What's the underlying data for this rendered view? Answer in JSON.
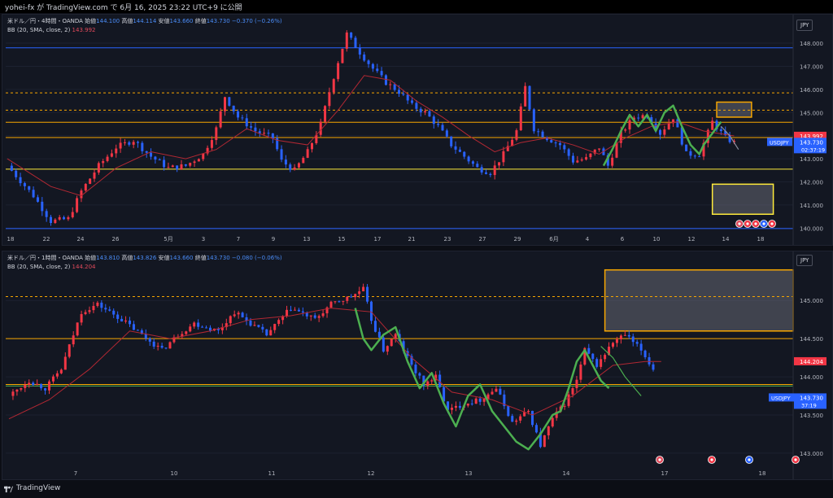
{
  "header": {
    "text": "yohei-fx が TradingView.com で 6月 16, 2025 23:22 UTC+9 に公開"
  },
  "footer": {
    "brand": "TradingView"
  },
  "colors": {
    "bull": "#f23645",
    "bear": "#2962ff",
    "bb": "#b22833",
    "wave": "#4caf50",
    "orange": "#f7a600",
    "support": "#ffeb3b",
    "blueline": "#2962ff"
  },
  "chart1": {
    "title": {
      "symbol": "米ドル／円・4時間・OANDA",
      "open_label": "始値",
      "open": "144.100",
      "high_label": "高値",
      "high": "144.114",
      "low_label": "安値",
      "low": "143.660",
      "close_label": "終値",
      "close": "143.730",
      "change": "−0.370 (−0.26%)"
    },
    "bb_label": "BB (20, SMA, close, 2)",
    "bb_value": "143.992",
    "currency": "JPY",
    "price_ticks": [
      "148.000",
      "147.000",
      "146.000",
      "145.000",
      "144.000",
      "143.000",
      "142.000",
      "141.000",
      "140.000"
    ],
    "date_ticks": [
      "18",
      "22",
      "24",
      "26",
      "5月",
      "3",
      "7",
      "9",
      "13",
      "15",
      "17",
      "21",
      "23",
      "27",
      "29",
      "6月",
      "4",
      "6",
      "10",
      "12",
      "14",
      "18"
    ],
    "tag_bb": "143.992",
    "tag_sym": "USDJPY",
    "tag_price": "143.730",
    "tag_time": "02:37:19"
  },
  "chart2": {
    "title": {
      "symbol": "米ドル／円・1時間・OANDA",
      "open_label": "始値",
      "open": "143.810",
      "high_label": "高値",
      "high": "143.826",
      "low_label": "安値",
      "low": "143.660",
      "close_label": "終値",
      "close": "143.730",
      "change": "−0.080 (−0.06%)"
    },
    "bb_label": "BB (20, SMA, close, 2)",
    "bb_value": "144.204",
    "currency": "JPY",
    "price_ticks": [
      "145.000",
      "144.500",
      "144.000",
      "143.500",
      "143.000"
    ],
    "date_ticks": [
      "7",
      "10",
      "11",
      "12",
      "13",
      "14",
      "17",
      "18"
    ],
    "tag_bb": "144.204",
    "tag_sym": "USDJPY",
    "tag_price": "143.730",
    "tag_time": "37:19"
  },
  "chart_data": [
    {
      "type": "candlestick",
      "title": "米ドル／円・4時間・OANDA",
      "ylim": [
        139.8,
        148.6
      ],
      "x_range": [
        "Apr 18",
        "Jun 18"
      ],
      "close_path": [
        [
          0,
          142.7
        ],
        [
          6,
          141.4
        ],
        [
          10,
          140.3
        ],
        [
          14,
          140.4
        ],
        [
          17,
          141.6
        ],
        [
          21,
          142.7
        ],
        [
          25,
          143.5
        ],
        [
          29,
          143.8
        ],
        [
          33,
          143.1
        ],
        [
          37,
          142.6
        ],
        [
          41,
          142.7
        ],
        [
          45,
          143.2
        ],
        [
          48,
          144.3
        ],
        [
          50,
          145.7
        ],
        [
          53,
          144.8
        ],
        [
          57,
          144.2
        ],
        [
          61,
          143.9
        ],
        [
          63,
          142.9
        ],
        [
          66,
          142.5
        ],
        [
          69,
          143.3
        ],
        [
          72,
          144.5
        ],
        [
          74,
          145.9
        ],
        [
          76,
          147.2
        ],
        [
          78,
          148.4
        ],
        [
          81,
          147.6
        ],
        [
          84,
          146.9
        ],
        [
          87,
          146.3
        ],
        [
          90,
          145.9
        ],
        [
          93,
          145.3
        ],
        [
          96,
          145.0
        ],
        [
          99,
          144.4
        ],
        [
          102,
          143.6
        ],
        [
          105,
          143.1
        ],
        [
          108,
          142.6
        ],
        [
          111,
          142.4
        ],
        [
          114,
          143.2
        ],
        [
          117,
          144.2
        ],
        [
          119,
          146.1
        ],
        [
          121,
          144.3
        ],
        [
          124,
          143.9
        ],
        [
          127,
          143.6
        ],
        [
          130,
          142.9
        ],
        [
          133,
          143.0
        ],
        [
          136,
          143.5
        ],
        [
          138,
          142.7
        ],
        [
          141,
          144.1
        ],
        [
          144,
          144.8
        ],
        [
          147,
          144.9
        ],
        [
          150,
          144.1
        ],
        [
          153,
          144.8
        ],
        [
          156,
          143.2
        ],
        [
          159,
          143.2
        ],
        [
          162,
          144.6
        ],
        [
          165,
          143.9
        ],
        [
          167,
          143.7
        ]
      ],
      "bb_basis": [
        [
          0,
          143.0
        ],
        [
          10,
          141.8
        ],
        [
          17,
          141.4
        ],
        [
          25,
          142.6
        ],
        [
          33,
          143.3
        ],
        [
          41,
          143.0
        ],
        [
          48,
          143.4
        ],
        [
          55,
          144.3
        ],
        [
          62,
          143.8
        ],
        [
          69,
          143.6
        ],
        [
          76,
          145.1
        ],
        [
          82,
          146.6
        ],
        [
          88,
          146.4
        ],
        [
          94,
          145.5
        ],
        [
          100,
          144.8
        ],
        [
          106,
          144.0
        ],
        [
          112,
          143.3
        ],
        [
          118,
          143.7
        ],
        [
          124,
          143.9
        ],
        [
          130,
          143.6
        ],
        [
          136,
          143.2
        ],
        [
          142,
          143.9
        ],
        [
          148,
          144.4
        ],
        [
          154,
          144.6
        ],
        [
          160,
          144.2
        ],
        [
          167,
          143.99
        ]
      ],
      "horizontal_lines": [
        {
          "price": 147.8,
          "style": "solid",
          "color": "#2962ff"
        },
        {
          "price": 145.85,
          "style": "dashed",
          "color": "#f7a600"
        },
        {
          "price": 145.1,
          "style": "dashed",
          "color": "#f7a600"
        },
        {
          "price": 144.58,
          "style": "solid",
          "color": "#f7a600"
        },
        {
          "price": 143.92,
          "style": "solid",
          "color": "#f7a600"
        },
        {
          "price": 142.55,
          "style": "solid",
          "color": "#ffeb3b"
        },
        {
          "price": 139.98,
          "style": "solid",
          "color": "#2962ff"
        }
      ],
      "zones": [
        {
          "from": 144.8,
          "to": 145.45,
          "x": [
            163,
            171
          ],
          "color": "#f7a600"
        },
        {
          "from": 140.6,
          "to": 141.9,
          "x": [
            162,
            176
          ],
          "color": "#ffeb3b"
        }
      ],
      "last_price": 143.73
    },
    {
      "type": "candlestick",
      "title": "米ドル／円・1時間・OANDA",
      "ylim": [
        142.85,
        145.45
      ],
      "x_range": [
        "Jun 6",
        "Jun 18"
      ],
      "close_path": [
        [
          0,
          143.75
        ],
        [
          5,
          143.95
        ],
        [
          9,
          143.85
        ],
        [
          13,
          144.1
        ],
        [
          18,
          144.85
        ],
        [
          22,
          144.95
        ],
        [
          28,
          144.75
        ],
        [
          33,
          144.55
        ],
        [
          38,
          144.35
        ],
        [
          42,
          144.55
        ],
        [
          46,
          144.7
        ],
        [
          52,
          144.6
        ],
        [
          56,
          144.85
        ],
        [
          60,
          144.7
        ],
        [
          64,
          144.55
        ],
        [
          70,
          144.9
        ],
        [
          76,
          144.75
        ],
        [
          80,
          144.95
        ],
        [
          85,
          145.05
        ],
        [
          88,
          145.15
        ],
        [
          90,
          144.75
        ],
        [
          93,
          144.35
        ],
        [
          96,
          144.55
        ],
        [
          100,
          144.15
        ],
        [
          103,
          143.9
        ],
        [
          106,
          144.0
        ],
        [
          109,
          143.55
        ],
        [
          113,
          143.65
        ],
        [
          117,
          143.7
        ],
        [
          121,
          143.85
        ],
        [
          125,
          143.4
        ],
        [
          129,
          143.55
        ],
        [
          132,
          143.1
        ],
        [
          135,
          143.45
        ],
        [
          138,
          143.65
        ],
        [
          141,
          143.95
        ],
        [
          143,
          144.35
        ],
        [
          146,
          144.15
        ],
        [
          150,
          144.45
        ],
        [
          153,
          144.55
        ],
        [
          157,
          144.35
        ],
        [
          160,
          144.1
        ]
      ],
      "bb_basis": [
        [
          0,
          143.45
        ],
        [
          10,
          143.7
        ],
        [
          20,
          144.1
        ],
        [
          30,
          144.6
        ],
        [
          40,
          144.5
        ],
        [
          50,
          144.6
        ],
        [
          60,
          144.75
        ],
        [
          70,
          144.8
        ],
        [
          80,
          144.9
        ],
        [
          90,
          144.85
        ],
        [
          100,
          144.25
        ],
        [
          110,
          143.8
        ],
        [
          120,
          143.7
        ],
        [
          130,
          143.5
        ],
        [
          140,
          143.75
        ],
        [
          150,
          144.15
        ],
        [
          158,
          144.2
        ],
        [
          162,
          144.2
        ]
      ],
      "horizontal_lines": [
        {
          "price": 145.05,
          "style": "dashed",
          "color": "#f7a600"
        },
        {
          "price": 144.5,
          "style": "solid",
          "color": "#f7a600"
        },
        {
          "price": 143.9,
          "style": "solid",
          "color": "#f7a600"
        },
        {
          "price": 143.88,
          "style": "solid",
          "color": "#4caf50"
        }
      ],
      "zones": [
        {
          "from": 144.6,
          "to": 145.4,
          "x": [
            148,
            200
          ],
          "color": "#f7a600"
        }
      ],
      "last_price": 143.73
    }
  ]
}
